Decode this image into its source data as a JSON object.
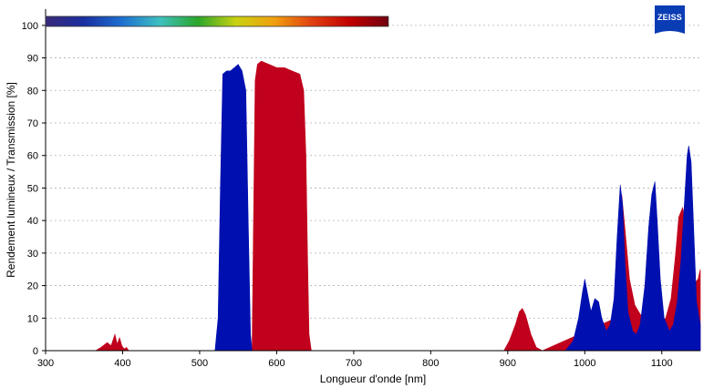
{
  "brand": {
    "logo_text": "ZEISS",
    "logo_color": "#0a3cb4"
  },
  "chart_data": {
    "type": "area",
    "title": "",
    "xlabel": "Longueur d'onde [nm]",
    "ylabel": "Rendement lumineux / Transmission [%]",
    "xlim": [
      300,
      1150
    ],
    "ylim": [
      0,
      105
    ],
    "x_ticks": [
      300,
      400,
      500,
      600,
      700,
      800,
      900,
      1000,
      1100
    ],
    "y_ticks": [
      0,
      10,
      20,
      30,
      40,
      50,
      60,
      70,
      80,
      90,
      100
    ],
    "grid": {
      "horizontal": true,
      "style": "dotted"
    },
    "spectrum_bar": {
      "from_nm": 300,
      "to_nm": 745,
      "colors": [
        "#3a2a7a",
        "#1a2fa0",
        "#1e6fd0",
        "#3fc0c0",
        "#2aa62a",
        "#c9d210",
        "#f0a010",
        "#e04010",
        "#c00000",
        "#700010"
      ]
    },
    "series": [
      {
        "color": "#c0001c",
        "x": [
          365,
          372,
          380,
          385,
          390,
          393,
          396,
          399,
          402,
          405,
          408,
          560,
          568,
          572,
          575,
          580,
          590,
          600,
          610,
          620,
          630,
          635,
          638,
          640,
          642,
          645,
          895,
          902,
          910,
          915,
          919,
          923,
          930,
          937,
          945,
          1040,
          1045,
          1048,
          1052,
          1058,
          1065,
          1075,
          1085,
          1095,
          1105,
          1112,
          1118,
          1122,
          1127,
          1132,
          1140,
          1147,
          1150
        ],
        "y": [
          0,
          1,
          2.5,
          1.5,
          5,
          2,
          4,
          1.5,
          0.5,
          1,
          0,
          0,
          0,
          83,
          88,
          89,
          88,
          87,
          87,
          86,
          85,
          80,
          60,
          30,
          5,
          0,
          0,
          3,
          8,
          12,
          13,
          11,
          5,
          1,
          0,
          10,
          35,
          48,
          38,
          22,
          14,
          10,
          9,
          8,
          10,
          16,
          30,
          41,
          44,
          38,
          20,
          22,
          25
        ]
      },
      {
        "color": "#0010b0",
        "x": [
          520,
          524,
          527,
          530,
          535,
          540,
          545,
          550,
          555,
          560,
          563,
          566,
          568,
          975,
          985,
          992,
          997,
          1000,
          1004,
          1008,
          1013,
          1018,
          1022,
          1028,
          1033,
          1038,
          1042,
          1046,
          1049,
          1052,
          1056,
          1062,
          1067,
          1072,
          1078,
          1083,
          1087,
          1091,
          1094,
          1098,
          1103,
          1110,
          1115,
          1120,
          1125,
          1130,
          1133,
          1135,
          1138,
          1141,
          1145,
          1150
        ],
        "y": [
          0,
          10,
          50,
          85,
          86,
          86,
          87,
          88,
          86,
          80,
          40,
          5,
          0,
          0,
          3,
          10,
          18,
          22,
          17,
          12,
          16,
          15,
          10,
          6,
          8,
          16,
          35,
          51,
          45,
          28,
          12,
          6,
          5,
          8,
          20,
          38,
          48,
          52,
          40,
          22,
          10,
          6,
          8,
          15,
          28,
          48,
          60,
          63,
          58,
          40,
          15,
          8
        ]
      }
    ]
  }
}
